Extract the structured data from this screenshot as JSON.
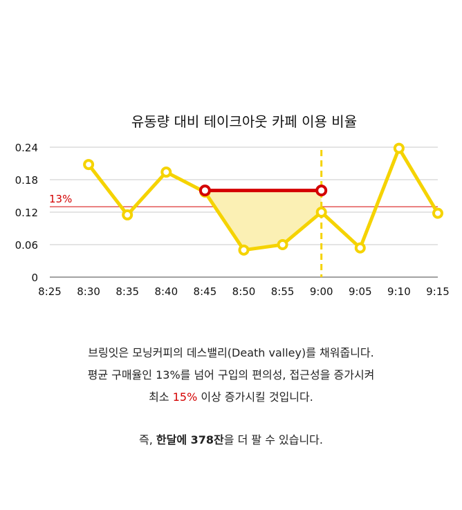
{
  "chart_data": {
    "type": "line",
    "title": "유동량 대비 테이크아웃 카페 이용 비율",
    "categories": [
      "8:25",
      "8:30",
      "8:35",
      "8:40",
      "8:45",
      "8:50",
      "8:55",
      "9:00",
      "9:05",
      "9:10",
      "9:15"
    ],
    "values": [
      null,
      0.208,
      0.115,
      0.194,
      0.157,
      0.05,
      0.06,
      0.12,
      0.054,
      0.238,
      0.118
    ],
    "ylim": [
      0,
      0.24
    ],
    "yticks": [
      "0",
      "0.06",
      "0.12",
      "0.18",
      "0.24"
    ],
    "reference_line": {
      "label": "13%",
      "value": 0.13
    },
    "highlight_segment": {
      "from": "8:45",
      "to": "9:00",
      "value": 0.16
    },
    "marker_vertical": "9:00",
    "colors": {
      "line": "#f5d300",
      "highlight": "#d40000",
      "fill": "#fbf0b4",
      "grid": "#c8c8c8"
    },
    "grid": true
  },
  "caption": {
    "line1": "브링잇은 모닝커피의 데스밸리(Death valley)를 채워줍니다.",
    "line2": "평균 구매율인 13%를 넘어 구입의 편의성, 접근성을 증가시켜",
    "line3_pre": "최소 ",
    "line3_hl": "15%",
    "line3_post": " 이상 증가시킬 것입니다.",
    "line4_pre": "즉, ",
    "line4_bold": "한달에 378잔",
    "line4_post": "을 더 팔 수 있습니다."
  }
}
